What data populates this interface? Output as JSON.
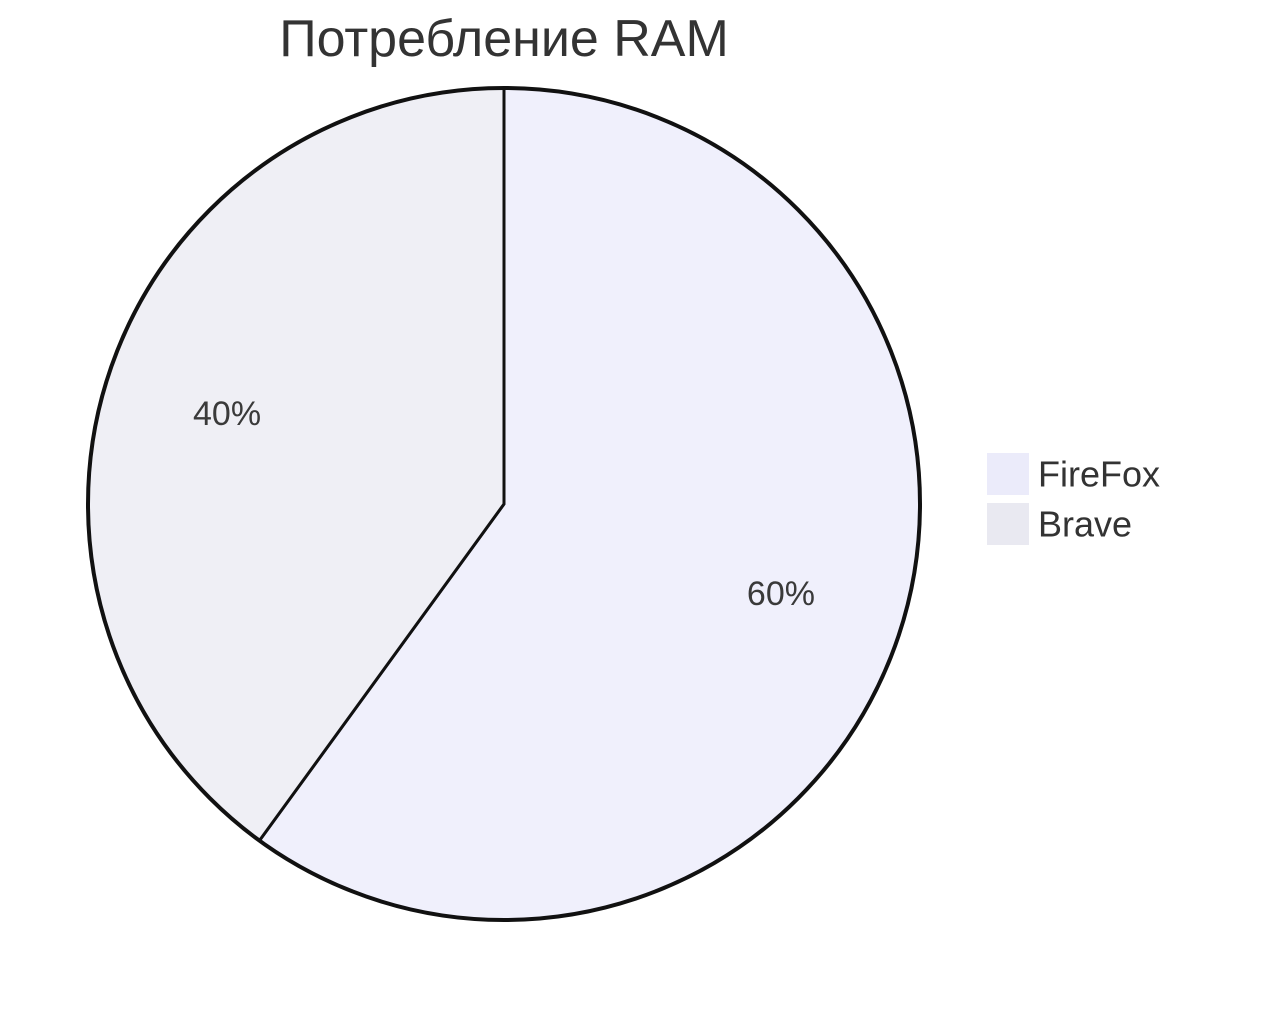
{
  "chart_data": {
    "type": "pie",
    "title": "Потребление RAM",
    "slices": [
      {
        "name": "FireFox",
        "value": 60,
        "label": "60%",
        "color": "#f0f0fc"
      },
      {
        "name": "Brave",
        "value": 40,
        "label": "40%",
        "color": "#efeff5"
      }
    ],
    "legend_position": "right",
    "start_angle_deg": 0,
    "direction": "clockwise",
    "outline_color": "#111111",
    "legend_swatch_colors": [
      "#ebebfa",
      "#e9e9f1"
    ]
  }
}
